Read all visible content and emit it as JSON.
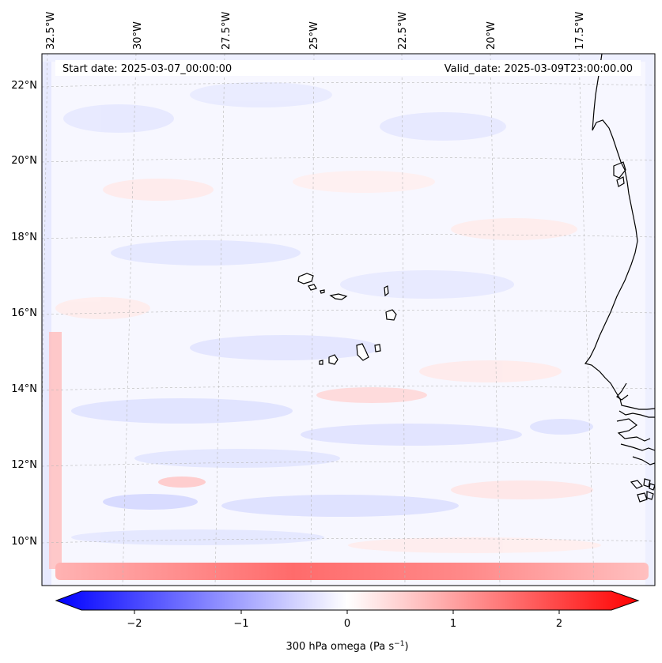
{
  "header": {
    "start_date": "Start date: 2025-03-07_00:00:00",
    "valid_date": "Valid_date: 2025-03-09T23:00:00.00"
  },
  "map": {
    "variable": "300 hPa omega",
    "longitude_labels": [
      "32.5°W",
      "30°W",
      "27.5°W",
      "25°W",
      "22.5°W",
      "20°W",
      "17.5°W"
    ],
    "latitude_labels": [
      "22°N",
      "20°N",
      "18°N",
      "16°N",
      "14°N",
      "12°N",
      "10°N"
    ],
    "features": [
      "Cape Verde islands",
      "West African coastline"
    ]
  },
  "colorbar": {
    "label": "300 hPa omega (Pa s",
    "label_exponent": "−1",
    "label_close": ")",
    "ticks": [
      "−2",
      "−1",
      "0",
      "1",
      "2"
    ],
    "range": [
      -2.7,
      2.7
    ],
    "colors": {
      "negative": "#0000ff",
      "zero": "#ffffff",
      "positive": "#ff0000"
    }
  }
}
